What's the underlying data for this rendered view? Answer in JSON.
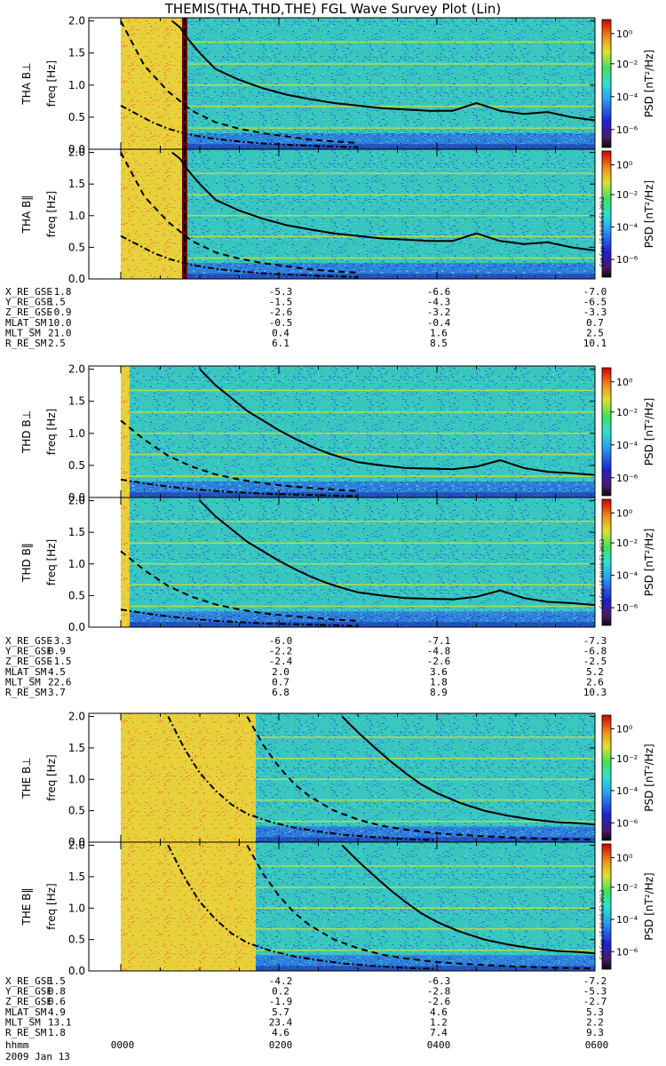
{
  "title": "THEMIS(THA,THD,THE) FGL Wave Survey Plot (Lin)",
  "colorbar": {
    "label": "PSD [nT²/Hz]",
    "ticks": [
      "10⁰",
      "10⁻²",
      "10⁻⁴",
      "10⁻⁶"
    ]
  },
  "freq_label": "freq [Hz]",
  "y_ticks": [
    "0.0",
    "0.5",
    "1.0",
    "1.5",
    "2.0"
  ],
  "time_labels": [
    "0000",
    "0200",
    "0400",
    "0600"
  ],
  "date": "2009 Jan 13",
  "hhmm_label": "hhmm",
  "stamps": [
    "Sat Sep 15 00:08:51 2012",
    "Sat Sep 15 00:08:51 2012",
    "Sat Sep 15 00:08:52 2012"
  ],
  "chart_data": [
    {
      "type": "heatmap",
      "ylabel": "THA B⊥",
      "ylim": [
        0,
        2.0
      ],
      "series": [
        {
          "name": "solid",
          "x": [
            0.65,
            0.75,
            0.85,
            1.0,
            1.2,
            1.5,
            1.8,
            2.1,
            2.4,
            2.7,
            3.0,
            3.3,
            3.6,
            3.9,
            4.2,
            4.5,
            4.8,
            5.1,
            5.4,
            5.7,
            6.0
          ],
          "values": [
            2.0,
            1.9,
            1.72,
            1.5,
            1.25,
            1.08,
            0.95,
            0.85,
            0.78,
            0.72,
            0.68,
            0.64,
            0.62,
            0.6,
            0.6,
            0.72,
            0.6,
            0.55,
            0.58,
            0.5,
            0.45
          ]
        },
        {
          "name": "dashed",
          "x": [
            0,
            0.3,
            0.6,
            0.9,
            1.2,
            1.5,
            1.8,
            2.1,
            2.4,
            2.7,
            3.0
          ],
          "values": [
            2.0,
            1.3,
            0.9,
            0.6,
            0.42,
            0.32,
            0.25,
            0.2,
            0.15,
            0.12,
            0.1
          ]
        },
        {
          "name": "dashdot",
          "x": [
            0,
            0.2,
            0.4,
            0.6,
            0.8,
            1.0,
            1.2,
            1.5,
            1.8,
            2.1,
            2.5,
            3.0
          ],
          "values": [
            0.68,
            0.55,
            0.42,
            0.32,
            0.25,
            0.2,
            0.16,
            0.12,
            0.09,
            0.07,
            0.05,
            0.03
          ]
        }
      ]
    },
    {
      "type": "heatmap",
      "ylabel": "THA B‖",
      "ylim": [
        0,
        2.0
      ],
      "series": [
        {
          "name": "solid",
          "x": [
            0.65,
            0.75,
            0.85,
            1.0,
            1.2,
            1.5,
            1.8,
            2.1,
            2.4,
            2.7,
            3.0,
            3.3,
            3.6,
            3.9,
            4.2,
            4.5,
            4.8,
            5.1,
            5.4,
            5.7,
            6.0
          ],
          "values": [
            2.0,
            1.9,
            1.72,
            1.5,
            1.25,
            1.08,
            0.95,
            0.85,
            0.78,
            0.72,
            0.68,
            0.64,
            0.62,
            0.6,
            0.6,
            0.72,
            0.6,
            0.55,
            0.58,
            0.5,
            0.45
          ]
        },
        {
          "name": "dashed",
          "x": [
            0,
            0.3,
            0.6,
            0.9,
            1.2,
            1.5,
            1.8,
            2.1,
            2.4,
            2.7,
            3.0
          ],
          "values": [
            2.0,
            1.3,
            0.9,
            0.6,
            0.42,
            0.32,
            0.25,
            0.2,
            0.15,
            0.12,
            0.1
          ]
        },
        {
          "name": "dashdot",
          "x": [
            0,
            0.2,
            0.4,
            0.6,
            0.8,
            1.0,
            1.2,
            1.5,
            1.8,
            2.1,
            2.5,
            3.0
          ],
          "values": [
            0.68,
            0.55,
            0.42,
            0.32,
            0.25,
            0.2,
            0.16,
            0.12,
            0.09,
            0.07,
            0.05,
            0.03
          ]
        }
      ]
    },
    {
      "type": "heatmap",
      "ylabel": "THD B⊥",
      "ylim": [
        0,
        2.0
      ],
      "series": [
        {
          "name": "solid",
          "x": [
            1.0,
            1.2,
            1.4,
            1.6,
            1.8,
            2.0,
            2.2,
            2.4,
            2.6,
            2.8,
            3.0,
            3.3,
            3.6,
            3.9,
            4.2,
            4.5,
            4.8,
            5.1,
            5.4,
            5.7,
            6.0
          ],
          "values": [
            2.0,
            1.75,
            1.55,
            1.35,
            1.2,
            1.05,
            0.92,
            0.8,
            0.7,
            0.62,
            0.55,
            0.5,
            0.46,
            0.45,
            0.44,
            0.48,
            0.58,
            0.46,
            0.4,
            0.38,
            0.35
          ]
        },
        {
          "name": "dashed",
          "x": [
            0,
            0.3,
            0.6,
            0.9,
            1.2,
            1.5,
            1.8,
            2.1,
            2.4,
            2.7,
            3.0
          ],
          "values": [
            1.2,
            0.9,
            0.65,
            0.48,
            0.36,
            0.28,
            0.22,
            0.18,
            0.15,
            0.12,
            0.1
          ]
        },
        {
          "name": "dashdot",
          "x": [
            0,
            0.3,
            0.6,
            0.9,
            1.2,
            1.5,
            1.8,
            2.1,
            2.4,
            2.7,
            3.0
          ],
          "values": [
            0.28,
            0.22,
            0.17,
            0.13,
            0.1,
            0.08,
            0.06,
            0.05,
            0.04,
            0.03,
            0.02
          ]
        }
      ]
    },
    {
      "type": "heatmap",
      "ylabel": "THD B‖",
      "ylim": [
        0,
        2.0
      ],
      "series": [
        {
          "name": "solid",
          "x": [
            1.0,
            1.2,
            1.4,
            1.6,
            1.8,
            2.0,
            2.2,
            2.4,
            2.6,
            2.8,
            3.0,
            3.3,
            3.6,
            3.9,
            4.2,
            4.5,
            4.8,
            5.1,
            5.4,
            5.7,
            6.0
          ],
          "values": [
            2.0,
            1.75,
            1.55,
            1.35,
            1.2,
            1.05,
            0.92,
            0.8,
            0.7,
            0.62,
            0.55,
            0.5,
            0.46,
            0.45,
            0.44,
            0.48,
            0.58,
            0.46,
            0.4,
            0.38,
            0.35
          ]
        },
        {
          "name": "dashed",
          "x": [
            0,
            0.3,
            0.6,
            0.9,
            1.2,
            1.5,
            1.8,
            2.1,
            2.4,
            2.7,
            3.0
          ],
          "values": [
            1.2,
            0.9,
            0.65,
            0.48,
            0.36,
            0.28,
            0.22,
            0.18,
            0.15,
            0.12,
            0.1
          ]
        },
        {
          "name": "dashdot",
          "x": [
            0,
            0.3,
            0.6,
            0.9,
            1.2,
            1.5,
            1.8,
            2.1,
            2.4,
            2.7,
            3.0
          ],
          "values": [
            0.28,
            0.22,
            0.17,
            0.13,
            0.1,
            0.08,
            0.06,
            0.05,
            0.04,
            0.03,
            0.02
          ]
        }
      ]
    },
    {
      "type": "heatmap",
      "ylabel": "THE B⊥",
      "ylim": [
        0,
        2.0
      ],
      "series": [
        {
          "name": "solid",
          "x": [
            2.8,
            3.0,
            3.2,
            3.4,
            3.6,
            3.8,
            4.0,
            4.3,
            4.6,
            4.9,
            5.2,
            5.5,
            5.8,
            6.0
          ],
          "values": [
            2.0,
            1.75,
            1.52,
            1.3,
            1.1,
            0.92,
            0.78,
            0.62,
            0.5,
            0.42,
            0.36,
            0.32,
            0.3,
            0.28
          ]
        },
        {
          "name": "dashed",
          "x": [
            1.6,
            1.8,
            2.0,
            2.2,
            2.4,
            2.7,
            3.0,
            3.3,
            3.6,
            4.0,
            4.5,
            5.0,
            5.5,
            6.0
          ],
          "values": [
            2.0,
            1.55,
            1.2,
            0.92,
            0.72,
            0.5,
            0.36,
            0.26,
            0.2,
            0.14,
            0.1,
            0.07,
            0.05,
            0.04
          ]
        },
        {
          "name": "dashdot",
          "x": [
            0.6,
            0.8,
            1.0,
            1.2,
            1.4,
            1.6,
            1.9,
            2.2,
            2.5,
            2.8,
            3.2,
            3.6,
            4.0
          ],
          "values": [
            2.0,
            1.5,
            1.1,
            0.82,
            0.6,
            0.45,
            0.32,
            0.23,
            0.17,
            0.12,
            0.08,
            0.05,
            0.03
          ]
        }
      ]
    },
    {
      "type": "heatmap",
      "ylabel": "THE B‖",
      "ylim": [
        0,
        2.0
      ],
      "series": [
        {
          "name": "solid",
          "x": [
            2.8,
            3.0,
            3.2,
            3.4,
            3.6,
            3.8,
            4.0,
            4.3,
            4.6,
            4.9,
            5.2,
            5.5,
            5.8,
            6.0
          ],
          "values": [
            2.0,
            1.75,
            1.52,
            1.3,
            1.1,
            0.92,
            0.78,
            0.62,
            0.5,
            0.42,
            0.36,
            0.32,
            0.3,
            0.28
          ]
        },
        {
          "name": "dashed",
          "x": [
            1.6,
            1.8,
            2.0,
            2.2,
            2.4,
            2.7,
            3.0,
            3.3,
            3.6,
            4.0,
            4.5,
            5.0,
            5.5,
            6.0
          ],
          "values": [
            2.0,
            1.55,
            1.2,
            0.92,
            0.72,
            0.5,
            0.36,
            0.26,
            0.2,
            0.14,
            0.1,
            0.07,
            0.05,
            0.04
          ]
        },
        {
          "name": "dashdot",
          "x": [
            0.6,
            0.8,
            1.0,
            1.2,
            1.4,
            1.6,
            1.9,
            2.2,
            2.5,
            2.8,
            3.2,
            3.6,
            4.0
          ],
          "values": [
            2.0,
            1.5,
            1.1,
            0.82,
            0.6,
            0.45,
            0.32,
            0.23,
            0.17,
            0.12,
            0.08,
            0.05,
            0.03
          ]
        }
      ]
    }
  ],
  "ephemeris": [
    {
      "rows": [
        [
          "X_RE_GSE",
          "-1.8",
          "-5.3",
          "-6.6",
          "-7.0"
        ],
        [
          "Y_RE_GSE",
          "1.5",
          "-1.5",
          "-4.3",
          "-6.5"
        ],
        [
          "Z_RE_GSE",
          "-0.9",
          "-2.6",
          "-3.2",
          "-3.3"
        ],
        [
          "MLAT_SM",
          "10.0",
          "-0.5",
          "-0.4",
          "0.7"
        ],
        [
          "MLT_SM",
          "21.0",
          "0.4",
          "1.6",
          "2.5"
        ],
        [
          "R_RE_SM",
          "2.5",
          "6.1",
          "8.5",
          "10.1"
        ]
      ]
    },
    {
      "rows": [
        [
          "X_RE_GSE",
          "-3.3",
          "-6.0",
          "-7.1",
          "-7.3"
        ],
        [
          "Y_RE_GSE",
          "0.9",
          "-2.2",
          "-4.8",
          "-6.8"
        ],
        [
          "Z_RE_GSE",
          "-1.5",
          "-2.4",
          "-2.6",
          "-2.5"
        ],
        [
          "MLAT_SM",
          "4.5",
          "2.0",
          "3.6",
          "5.2"
        ],
        [
          "MLT_SM",
          "22.6",
          "0.7",
          "1.8",
          "2.6"
        ],
        [
          "R_RE_SM",
          "3.7",
          "6.8",
          "8.9",
          "10.3"
        ]
      ]
    },
    {
      "rows": [
        [
          "X_RE_GSE",
          "1.5",
          "-4.2",
          "-6.3",
          "-7.2"
        ],
        [
          "Y_RE_GSE",
          "0.8",
          "0.2",
          "-2.8",
          "-5.3"
        ],
        [
          "Z_RE_GSE",
          "0.6",
          "-1.9",
          "-2.6",
          "-2.7"
        ],
        [
          "MLAT_SM",
          "4.9",
          "5.7",
          "4.6",
          "5.3"
        ],
        [
          "MLT_SM",
          "13.1",
          "23.4",
          "1.2",
          "2.2"
        ],
        [
          "R_RE_SM",
          "1.8",
          "4.6",
          "7.4",
          "9.3"
        ]
      ]
    }
  ]
}
